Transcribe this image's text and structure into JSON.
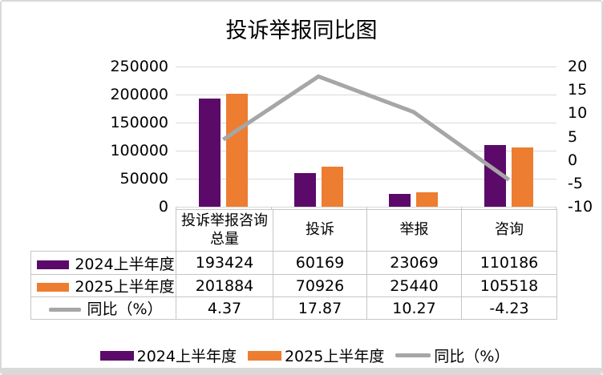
{
  "chart": {
    "title": "投诉举报同比图",
    "left_axis": {
      "ticks": [
        "250000",
        "200000",
        "150000",
        "100000",
        "50000",
        "0"
      ]
    },
    "right_axis": {
      "ticks": [
        "20",
        "15",
        "10",
        "5",
        "0",
        "-5",
        "-10"
      ]
    }
  },
  "chart_data": {
    "type": "bar",
    "combo": "bar+line",
    "title": "投诉举报同比图",
    "categories": [
      "投诉举报咨询总量",
      "投诉",
      "举报",
      "咨询"
    ],
    "series": [
      {
        "name": "2024上半年度",
        "type": "bar",
        "axis": "left",
        "color": "#5B0A69",
        "values": [
          193424,
          60169,
          23069,
          110186
        ]
      },
      {
        "name": "2025上半年度",
        "type": "bar",
        "axis": "left",
        "color": "#ED7D31",
        "values": [
          201884,
          70926,
          25440,
          105518
        ]
      },
      {
        "name": "同比（%）",
        "type": "line",
        "axis": "right",
        "color": "#A6A6A6",
        "values": [
          4.37,
          17.87,
          10.27,
          -4.23
        ]
      }
    ],
    "xlabel": "",
    "ylabel": "",
    "left_ylim": [
      0,
      250000
    ],
    "left_step": 50000,
    "right_ylim": [
      -10,
      20
    ],
    "right_step": 5,
    "grid": true,
    "legend_position": "bottom",
    "data_table_shown": true
  },
  "table": {
    "col_headers": [
      "投诉举报咨询总量",
      "投诉",
      "举报",
      "咨询"
    ],
    "rows": [
      {
        "label": "2024上半年度",
        "swatch": "bar",
        "color": "#5B0A69",
        "values": [
          "193424",
          "60169",
          "23069",
          "110186"
        ]
      },
      {
        "label": "2025上半年度",
        "swatch": "bar",
        "color": "#ED7D31",
        "values": [
          "201884",
          "70926",
          "25440",
          "105518"
        ]
      },
      {
        "label": "同比（%）",
        "swatch": "line",
        "color": "#A6A6A6",
        "values": [
          "4.37",
          "17.87",
          "10.27",
          "-4.23"
        ]
      }
    ]
  },
  "legend": {
    "items": [
      {
        "label": "2024上半年度",
        "swatch": "bar",
        "color": "#5B0A69"
      },
      {
        "label": "2025上半年度",
        "swatch": "bar",
        "color": "#ED7D31"
      },
      {
        "label": "同比（%）",
        "swatch": "line",
        "color": "#A6A6A6"
      }
    ]
  },
  "colors": {
    "gridline": "#D9D9D9",
    "table_border": "#C6C6C6",
    "window_border": "#D9D9D9",
    "bottom_strip": "#D9D9D9"
  }
}
